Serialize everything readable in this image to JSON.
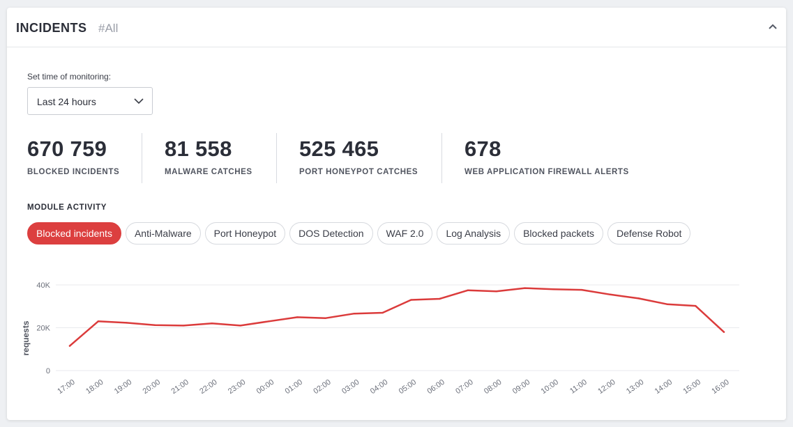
{
  "header": {
    "title": "INCIDENTS",
    "tag": "#All"
  },
  "monitoring": {
    "label": "Set time of monitoring:",
    "selected": "Last 24 hours"
  },
  "stats": [
    {
      "value": "670 759",
      "label": "BLOCKED INCIDENTS"
    },
    {
      "value": "81 558",
      "label": "MALWARE CATCHES"
    },
    {
      "value": "525 465",
      "label": "PORT HONEYPOT CATCHES"
    },
    {
      "value": "678",
      "label": "WEB APPLICATION FIREWALL ALERTS"
    }
  ],
  "module_activity": {
    "title": "MODULE ACTIVITY",
    "tabs": [
      {
        "label": "Blocked incidents",
        "active": true
      },
      {
        "label": "Anti-Malware",
        "active": false
      },
      {
        "label": "Port Honeypot",
        "active": false
      },
      {
        "label": "DOS Detection",
        "active": false
      },
      {
        "label": "WAF 2.0",
        "active": false
      },
      {
        "label": "Log Analysis",
        "active": false
      },
      {
        "label": "Blocked packets",
        "active": false
      },
      {
        "label": "Defense Robot",
        "active": false
      }
    ]
  },
  "colors": {
    "accent": "#dc3f3f",
    "line": "#db3b3b",
    "grid": "#e8eaed"
  },
  "chart_data": {
    "type": "line",
    "title": "",
    "xlabel": "",
    "ylabel": "requests",
    "categories": [
      "17:00",
      "18:00",
      "19:00",
      "20:00",
      "21:00",
      "22:00",
      "23:00",
      "00:00",
      "01:00",
      "02:00",
      "03:00",
      "04:00",
      "05:00",
      "06:00",
      "07:00",
      "08:00",
      "09:00",
      "10:00",
      "11:00",
      "12:00",
      "13:00",
      "14:00",
      "15:00",
      "16:00"
    ],
    "series": [
      {
        "name": "Blocked incidents",
        "values": [
          11500,
          23000,
          22300,
          21200,
          21000,
          22000,
          21000,
          23000,
          24900,
          24500,
          26600,
          27000,
          33000,
          33500,
          37500,
          37000,
          38500,
          38000,
          37700,
          35500,
          33700,
          31000,
          30200,
          18000
        ]
      }
    ],
    "yticks": [
      0,
      20000,
      40000
    ],
    "ytick_labels": [
      "0",
      "20K",
      "40K"
    ],
    "ylim": [
      0,
      40000
    ],
    "grid": true
  }
}
